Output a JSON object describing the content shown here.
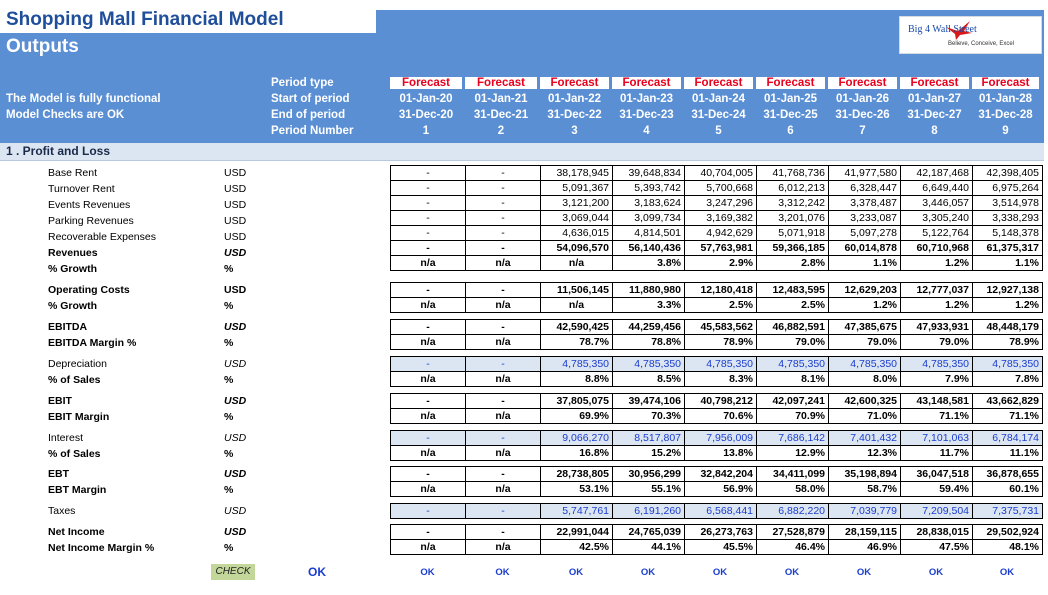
{
  "title": "Shopping Mall Financial Model",
  "subtitle": "Outputs",
  "logo": {
    "name": "Big 4 Wall Street",
    "tagline": "Believe, Conceive, Excel"
  },
  "status": {
    "line1": "The Model is fully functional",
    "line2": "Model Checks are OK"
  },
  "header_labels": {
    "period_type": "Period type",
    "start": "Start of period",
    "end": "End of period",
    "number": "Period Number"
  },
  "periods": [
    {
      "type": "Forecast",
      "start": "01-Jan-20",
      "end": "31-Dec-20",
      "num": "1"
    },
    {
      "type": "Forecast",
      "start": "01-Jan-21",
      "end": "31-Dec-21",
      "num": "2"
    },
    {
      "type": "Forecast",
      "start": "01-Jan-22",
      "end": "31-Dec-22",
      "num": "3"
    },
    {
      "type": "Forecast",
      "start": "01-Jan-23",
      "end": "31-Dec-23",
      "num": "4"
    },
    {
      "type": "Forecast",
      "start": "01-Jan-24",
      "end": "31-Dec-24",
      "num": "5"
    },
    {
      "type": "Forecast",
      "start": "01-Jan-25",
      "end": "31-Dec-25",
      "num": "6"
    },
    {
      "type": "Forecast",
      "start": "01-Jan-26",
      "end": "31-Dec-26",
      "num": "7"
    },
    {
      "type": "Forecast",
      "start": "01-Jan-27",
      "end": "31-Dec-27",
      "num": "8"
    },
    {
      "type": "Forecast",
      "start": "01-Jan-28",
      "end": "31-Dec-28",
      "num": "9"
    }
  ],
  "section": "1 .  Profit and Loss",
  "groups": [
    {
      "rows": [
        {
          "label": "Base Rent",
          "unit": "USD",
          "values": [
            "-",
            "-",
            "38,178,945",
            "39,648,834",
            "40,704,005",
            "41,768,736",
            "41,977,580",
            "42,187,468",
            "42,398,405"
          ]
        },
        {
          "label": "Turnover Rent",
          "unit": "USD",
          "values": [
            "-",
            "-",
            "5,091,367",
            "5,393,742",
            "5,700,668",
            "6,012,213",
            "6,328,447",
            "6,649,440",
            "6,975,264"
          ]
        },
        {
          "label": "Events Revenues",
          "unit": "USD",
          "values": [
            "-",
            "-",
            "3,121,200",
            "3,183,624",
            "3,247,296",
            "3,312,242",
            "3,378,487",
            "3,446,057",
            "3,514,978"
          ]
        },
        {
          "label": "Parking Revenues",
          "unit": "USD",
          "values": [
            "-",
            "-",
            "3,069,044",
            "3,099,734",
            "3,169,382",
            "3,201,076",
            "3,233,087",
            "3,305,240",
            "3,338,293"
          ]
        },
        {
          "label": "Recoverable Expenses",
          "unit": "USD",
          "values": [
            "-",
            "-",
            "4,636,015",
            "4,814,501",
            "4,942,629",
            "5,071,918",
            "5,097,278",
            "5,122,764",
            "5,148,378"
          ]
        },
        {
          "label": "Revenues",
          "unit": "USD",
          "bold": true,
          "values": [
            "-",
            "-",
            "54,096,570",
            "56,140,436",
            "57,763,981",
            "59,366,185",
            "60,014,878",
            "60,710,968",
            "61,375,317"
          ]
        },
        {
          "label": "% Growth",
          "unit": "%",
          "bold": true,
          "values": [
            "n/a",
            "n/a",
            "n/a",
            "3.8%",
            "2.9%",
            "2.8%",
            "1.1%",
            "1.2%",
            "1.1%"
          ]
        }
      ]
    },
    {
      "rows": [
        {
          "label": "Operating Costs",
          "unit": "USD",
          "bold": true,
          "values": [
            "-",
            "-",
            "11,506,145",
            "11,880,980",
            "12,180,418",
            "12,483,595",
            "12,629,203",
            "12,777,037",
            "12,927,138"
          ]
        },
        {
          "label": "% Growth",
          "unit": "%",
          "bold": true,
          "values": [
            "n/a",
            "n/a",
            "n/a",
            "3.3%",
            "2.5%",
            "2.5%",
            "1.2%",
            "1.2%",
            "1.2%"
          ]
        }
      ]
    },
    {
      "rows": [
        {
          "label": "EBITDA",
          "unit": "USD",
          "bold": true,
          "values": [
            "-",
            "-",
            "42,590,425",
            "44,259,456",
            "45,583,562",
            "46,882,591",
            "47,385,675",
            "47,933,931",
            "48,448,179"
          ]
        },
        {
          "label": "EBITDA Margin %",
          "unit": "%",
          "bold": true,
          "values": [
            "n/a",
            "n/a",
            "78.7%",
            "78.8%",
            "78.9%",
            "79.0%",
            "79.0%",
            "79.0%",
            "78.9%"
          ]
        }
      ]
    },
    {
      "rows": [
        {
          "label": "Depreciation",
          "unit": "USD",
          "blue": true,
          "values": [
            "-",
            "-",
            "4,785,350",
            "4,785,350",
            "4,785,350",
            "4,785,350",
            "4,785,350",
            "4,785,350",
            "4,785,350"
          ]
        },
        {
          "label": "% of Sales",
          "unit": "%",
          "bold": true,
          "values": [
            "n/a",
            "n/a",
            "8.8%",
            "8.5%",
            "8.3%",
            "8.1%",
            "8.0%",
            "7.9%",
            "7.8%"
          ]
        }
      ]
    },
    {
      "rows": [
        {
          "label": "EBIT",
          "unit": "USD",
          "bold": true,
          "values": [
            "-",
            "-",
            "37,805,075",
            "39,474,106",
            "40,798,212",
            "42,097,241",
            "42,600,325",
            "43,148,581",
            "43,662,829"
          ]
        },
        {
          "label": "EBIT Margin",
          "unit": "%",
          "bold": true,
          "values": [
            "n/a",
            "n/a",
            "69.9%",
            "70.3%",
            "70.6%",
            "70.9%",
            "71.0%",
            "71.1%",
            "71.1%"
          ]
        }
      ]
    },
    {
      "rows": [
        {
          "label": "Interest",
          "unit": "USD",
          "blue": true,
          "values": [
            "-",
            "-",
            "9,066,270",
            "8,517,807",
            "7,956,009",
            "7,686,142",
            "7,401,432",
            "7,101,063",
            "6,784,174"
          ]
        },
        {
          "label": "% of Sales",
          "unit": "%",
          "bold": true,
          "values": [
            "n/a",
            "n/a",
            "16.8%",
            "15.2%",
            "13.8%",
            "12.9%",
            "12.3%",
            "11.7%",
            "11.1%"
          ]
        }
      ]
    },
    {
      "rows": [
        {
          "label": "EBT",
          "unit": "USD",
          "bold": true,
          "values": [
            "-",
            "-",
            "28,738,805",
            "30,956,299",
            "32,842,204",
            "34,411,099",
            "35,198,894",
            "36,047,518",
            "36,878,655"
          ]
        },
        {
          "label": "EBT Margin",
          "unit": "%",
          "bold": true,
          "values": [
            "n/a",
            "n/a",
            "53.1%",
            "55.1%",
            "56.9%",
            "58.0%",
            "58.7%",
            "59.4%",
            "60.1%"
          ]
        }
      ]
    },
    {
      "rows": [
        {
          "label": "Taxes",
          "unit": "USD",
          "blue": true,
          "values": [
            "-",
            "-",
            "5,747,761",
            "6,191,260",
            "6,568,441",
            "6,882,220",
            "7,039,779",
            "7,209,504",
            "7,375,731"
          ]
        }
      ]
    },
    {
      "rows": [
        {
          "label": "Net Income",
          "unit": "USD",
          "bold": true,
          "values": [
            "-",
            "-",
            "22,991,044",
            "24,765,039",
            "26,273,763",
            "27,528,879",
            "28,159,115",
            "28,838,015",
            "29,502,924"
          ]
        },
        {
          "label": "Net Income Margin %",
          "unit": "%",
          "bold": true,
          "values": [
            "n/a",
            "n/a",
            "42.5%",
            "44.1%",
            "45.5%",
            "46.4%",
            "46.9%",
            "47.5%",
            "48.1%"
          ]
        }
      ]
    }
  ],
  "check": {
    "label": "CHECK",
    "overall": "OK",
    "columns": [
      "OK",
      "OK",
      "OK",
      "OK",
      "OK",
      "OK",
      "OK",
      "OK",
      "OK"
    ]
  }
}
